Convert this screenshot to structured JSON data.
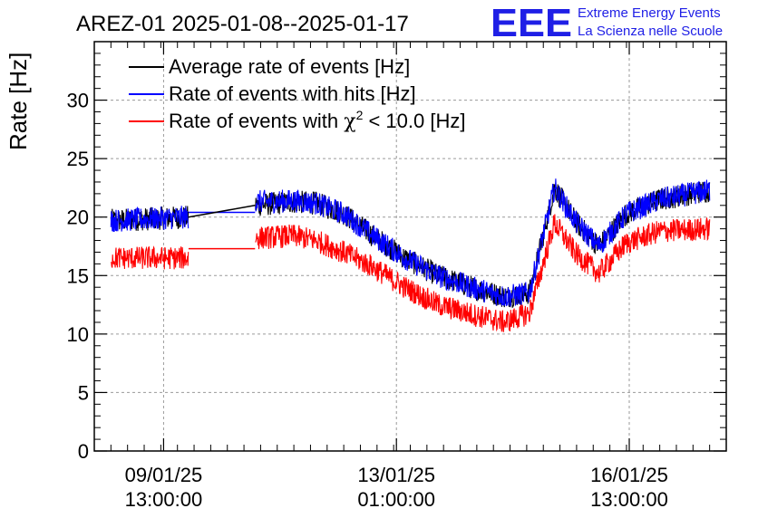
{
  "chart_data": {
    "type": "line",
    "title": "AREZ-01 2025-01-08--2025-01-17",
    "ylabel": "Rate [Hz]",
    "xlabel": "",
    "ylim": [
      0,
      35
    ],
    "y_major_ticks": [
      0,
      5,
      10,
      15,
      20,
      25,
      30
    ],
    "grid": true,
    "legend_position": "top-left",
    "time_axis": {
      "start": "2025-01-08T12:00:00",
      "end": "2025-01-18T00:00:00",
      "tick_times": [
        "2025-01-09T13:00:00",
        "2025-01-13T01:00:00",
        "2025-01-16T13:00:00"
      ],
      "tick_labels": [
        {
          "date": "09/01/25",
          "time": "13:00:00"
        },
        {
          "date": "13/01/25",
          "time": "01:00:00"
        },
        {
          "date": "16/01/25",
          "time": "13:00:00"
        }
      ]
    },
    "series": [
      {
        "name": "Average rate of events [Hz]",
        "color": "#000000",
        "noise": 1.0,
        "points": [
          [
            "2025-01-08T18:00",
            19.7
          ],
          [
            "2025-01-09T22:00",
            20.0
          ],
          [
            "2025-01-10T22:00",
            21.0
          ],
          [
            "2025-01-11T12:00",
            21.3
          ],
          [
            "2025-01-11T20:00",
            21.2
          ],
          [
            "2025-01-12T06:00",
            20.3
          ],
          [
            "2025-01-12T16:00",
            18.5
          ],
          [
            "2025-01-13T04:00",
            16.5
          ],
          [
            "2025-01-13T16:00",
            15.0
          ],
          [
            "2025-01-14T04:00",
            14.0
          ],
          [
            "2025-01-14T16:00",
            13.2
          ],
          [
            "2025-01-15T01:00",
            13.5
          ],
          [
            "2025-01-15T10:00",
            22.5
          ],
          [
            "2025-01-15T18:00",
            19.5
          ],
          [
            "2025-01-16T02:00",
            17.5
          ],
          [
            "2025-01-16T12:00",
            20.3
          ],
          [
            "2025-01-17T00:00",
            21.5
          ],
          [
            "2025-01-17T18:00",
            22.3
          ]
        ]
      },
      {
        "name": "Rate of events with hits [Hz]",
        "color": "#0000ff",
        "noise": 1.0,
        "points": [
          [
            "2025-01-08T18:00",
            19.7
          ],
          [
            "2025-01-09T22:00",
            20.0
          ],
          [
            "2025-01-10T22:00",
            21.3
          ],
          [
            "2025-01-11T12:00",
            21.4
          ],
          [
            "2025-01-11T20:00",
            21.2
          ],
          [
            "2025-01-12T06:00",
            20.3
          ],
          [
            "2025-01-12T16:00",
            18.5
          ],
          [
            "2025-01-13T04:00",
            16.5
          ],
          [
            "2025-01-13T16:00",
            15.0
          ],
          [
            "2025-01-14T04:00",
            14.0
          ],
          [
            "2025-01-14T16:00",
            13.2
          ],
          [
            "2025-01-15T01:00",
            13.5
          ],
          [
            "2025-01-15T10:00",
            22.5
          ],
          [
            "2025-01-15T18:00",
            19.5
          ],
          [
            "2025-01-16T02:00",
            17.5
          ],
          [
            "2025-01-16T12:00",
            20.3
          ],
          [
            "2025-01-17T00:00",
            21.5
          ],
          [
            "2025-01-17T18:00",
            22.3
          ]
        ],
        "connectors": [
          [
            "2025-01-09T22:00",
            20.4,
            "2025-01-10T22:00",
            20.4
          ]
        ]
      },
      {
        "name": "Rate of events with χ2 < 10.0 [Hz]",
        "color": "#ff0000",
        "noise": 1.0,
        "points": [
          [
            "2025-01-08T18:00",
            16.5
          ],
          [
            "2025-01-09T22:00",
            16.5
          ],
          [
            "2025-01-10T22:00",
            18.2
          ],
          [
            "2025-01-11T12:00",
            18.4
          ],
          [
            "2025-01-11T20:00",
            18.0
          ],
          [
            "2025-01-12T06:00",
            17.0
          ],
          [
            "2025-01-12T16:00",
            15.8
          ],
          [
            "2025-01-13T04:00",
            14.0
          ],
          [
            "2025-01-13T16:00",
            12.5
          ],
          [
            "2025-01-14T04:00",
            11.7
          ],
          [
            "2025-01-14T16:00",
            11.0
          ],
          [
            "2025-01-15T01:00",
            11.8
          ],
          [
            "2025-01-15T10:00",
            19.5
          ],
          [
            "2025-01-15T18:00",
            16.8
          ],
          [
            "2025-01-16T02:00",
            15.2
          ],
          [
            "2025-01-16T12:00",
            17.8
          ],
          [
            "2025-01-17T00:00",
            18.8
          ],
          [
            "2025-01-17T18:00",
            19.0
          ]
        ],
        "connectors": [
          [
            "2025-01-09T22:00",
            17.3,
            "2025-01-10T22:00",
            17.3
          ]
        ]
      }
    ],
    "gaps": [
      [
        "2025-01-09T22:00",
        "2025-01-10T22:00"
      ]
    ]
  },
  "title": "AREZ-01 2025-01-08--2025-01-17",
  "logo": {
    "mark": "EEE",
    "line1": "Extreme Energy Events",
    "line2": "La Scienza nelle Scuole",
    "color": "#1f1fe6"
  },
  "legend": {
    "items": [
      {
        "label": "Average rate of events [Hz]",
        "color": "#000000"
      },
      {
        "label": "Rate of events with hits [Hz]",
        "color": "#0000ff"
      },
      {
        "label_pre": "Rate of events with ",
        "label_chi": "χ",
        "label_sup": "2",
        "label_post": " < 10.0 [Hz]",
        "color": "#ff0000"
      }
    ]
  }
}
